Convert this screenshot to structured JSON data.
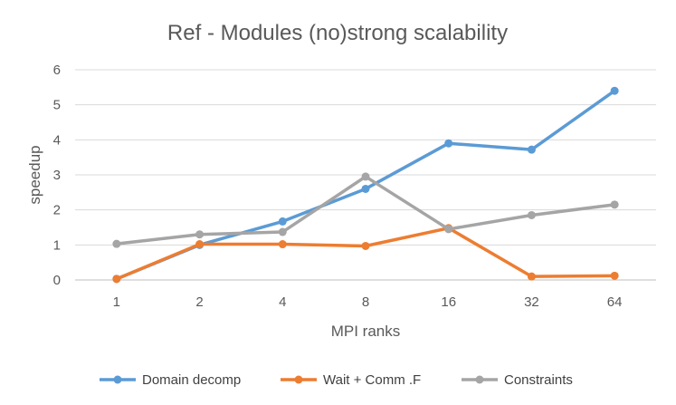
{
  "chart_data": {
    "type": "line",
    "title": "Ref - Modules (no)strong scalability",
    "xlabel": "MPI ranks",
    "ylabel": "speedup",
    "categories": [
      "1",
      "2",
      "4",
      "8",
      "16",
      "32",
      "64"
    ],
    "ylim": [
      0,
      6
    ],
    "yticks": [
      "0",
      "1",
      "2",
      "3",
      "4",
      "5",
      "6"
    ],
    "grid": true,
    "legend_position": "bottom",
    "series": [
      {
        "name": "Domain decomp",
        "color": "#5b9bd5",
        "values": [
          0.03,
          1.0,
          1.67,
          2.6,
          3.9,
          3.72,
          5.4
        ]
      },
      {
        "name": "Wait + Comm .F",
        "color": "#ed7d31",
        "values": [
          0.03,
          1.02,
          1.02,
          0.97,
          1.48,
          0.1,
          0.12
        ]
      },
      {
        "name": "Constraints",
        "color": "#a5a5a5",
        "values": [
          1.03,
          1.3,
          1.37,
          2.95,
          1.45,
          1.85,
          2.15
        ]
      }
    ]
  }
}
